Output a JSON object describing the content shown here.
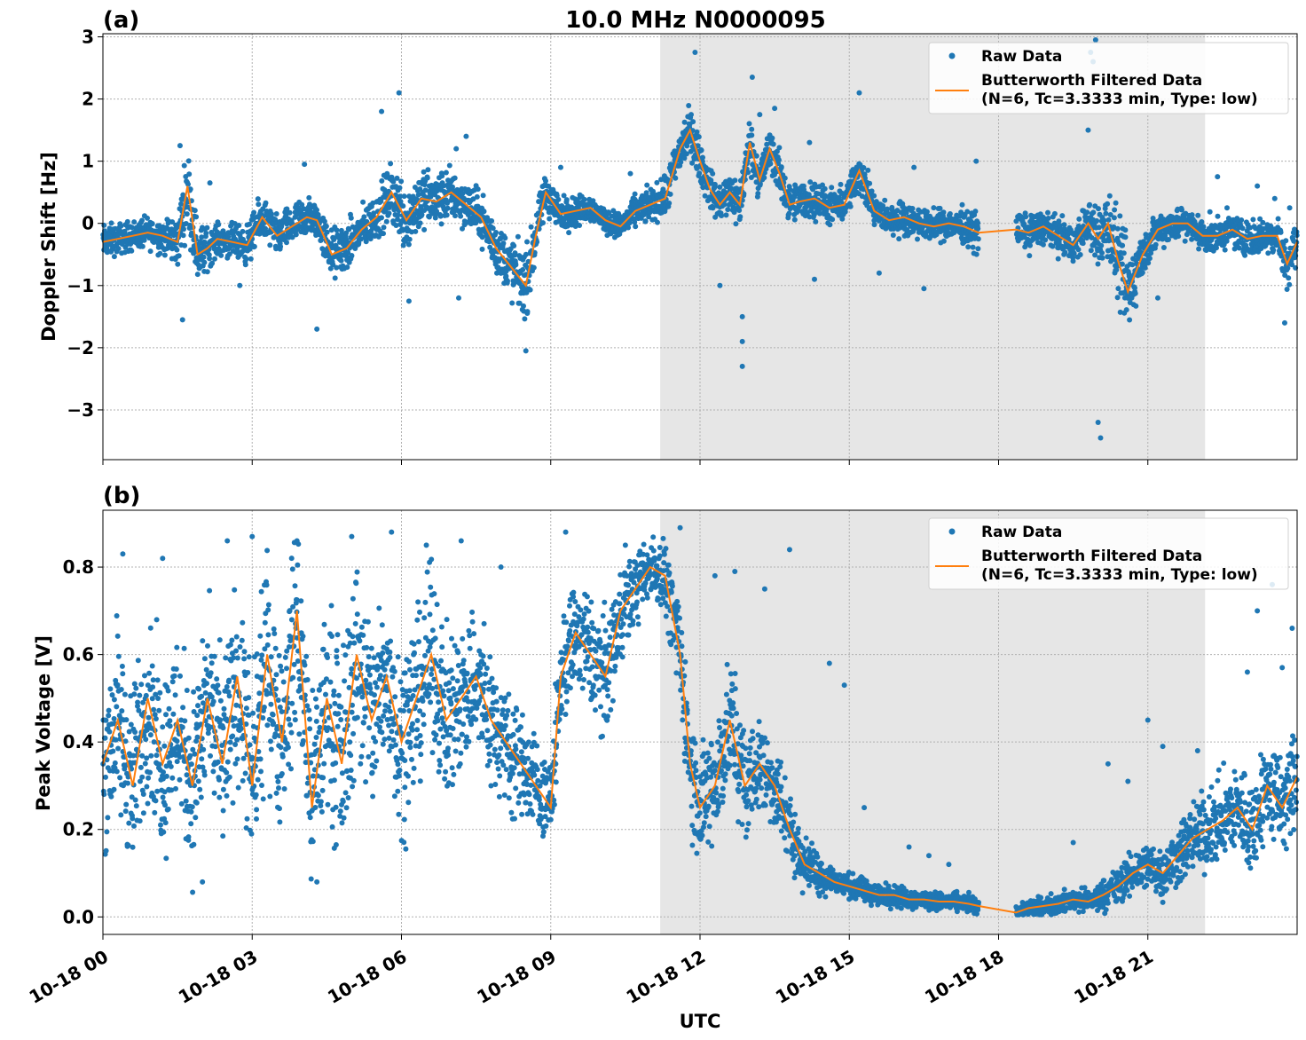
{
  "figure": {
    "title": "10.0 MHz N0000095",
    "xlabel": "UTC",
    "x_tick_labels": [
      "10-18 00",
      "10-18 03",
      "10-18 06",
      "10-18 09",
      "10-18 12",
      "10-18 15",
      "10-18 18",
      "10-18 21"
    ]
  },
  "legend": {
    "raw_label": "Raw Data",
    "filtered_label_line1": "Butterworth Filtered Data",
    "filtered_label_line2": "(N=6, Tc=3.3333 min, Type: low)"
  },
  "colors": {
    "raw": "#1f77b4",
    "filtered": "#ff7f0e",
    "night_shade": "#e6e6e6",
    "grid": "#b0b0b0"
  },
  "chart_data": [
    {
      "type": "scatter",
      "panel_label": "(a)",
      "ylabel": "Doppler Shift [Hz]",
      "x_unit": "hours UTC on 10-18",
      "xlim": [
        0,
        24
      ],
      "ylim": [
        -3.8,
        3.05
      ],
      "y_ticks": [
        -3,
        -2,
        -1,
        0,
        1,
        2,
        3
      ],
      "y_tick_labels": [
        "−3",
        "−2",
        "−1",
        "0",
        "1",
        "2",
        "3"
      ],
      "grid": true,
      "legend_position": "top-right",
      "shaded_region_hours": [
        11.2,
        22.15
      ],
      "data_gap_hours": [
        17.6,
        18.35
      ],
      "series": [
        {
          "name": "Butterworth Filtered Data",
          "role": "filtered",
          "x": [
            0,
            0.3,
            0.6,
            0.9,
            1.2,
            1.5,
            1.7,
            1.9,
            2.1,
            2.3,
            2.6,
            2.9,
            3.2,
            3.5,
            3.8,
            4.1,
            4.3,
            4.6,
            4.9,
            5.2,
            5.5,
            5.8,
            6.1,
            6.4,
            6.7,
            7.0,
            7.3,
            7.6,
            7.9,
            8.2,
            8.5,
            8.7,
            8.9,
            9.2,
            9.5,
            9.8,
            10.1,
            10.4,
            10.7,
            11.0,
            11.3,
            11.6,
            11.8,
            12.0,
            12.2,
            12.4,
            12.6,
            12.8,
            13.0,
            13.2,
            13.4,
            13.6,
            13.8,
            14.0,
            14.3,
            14.6,
            14.9,
            15.2,
            15.5,
            15.8,
            16.1,
            16.4,
            16.7,
            17.0,
            17.3,
            17.6,
            18.35,
            18.6,
            18.9,
            19.2,
            19.5,
            19.8,
            20.0,
            20.2,
            20.4,
            20.6,
            20.9,
            21.2,
            21.5,
            21.8,
            22.1,
            22.4,
            22.7,
            23.0,
            23.3,
            23.6,
            23.8,
            24.0
          ],
          "y": [
            -0.3,
            -0.25,
            -0.2,
            -0.15,
            -0.2,
            -0.3,
            0.6,
            -0.5,
            -0.4,
            -0.25,
            -0.3,
            -0.35,
            0.1,
            -0.2,
            -0.05,
            0.1,
            0.05,
            -0.5,
            -0.4,
            -0.1,
            0.1,
            0.5,
            0.05,
            0.4,
            0.35,
            0.5,
            0.3,
            0.1,
            -0.4,
            -0.7,
            -1.0,
            -0.2,
            0.5,
            0.15,
            0.2,
            0.25,
            0.05,
            -0.05,
            0.2,
            0.3,
            0.4,
            1.2,
            1.5,
            1.0,
            0.55,
            0.3,
            0.5,
            0.3,
            1.3,
            0.7,
            1.2,
            0.8,
            0.3,
            0.35,
            0.4,
            0.25,
            0.3,
            0.85,
            0.2,
            0.05,
            0.1,
            0.0,
            -0.05,
            0.0,
            -0.05,
            -0.15,
            -0.1,
            -0.15,
            -0.05,
            -0.2,
            -0.35,
            0.0,
            -0.25,
            0.0,
            -0.6,
            -1.1,
            -0.5,
            -0.1,
            0.0,
            0.0,
            -0.2,
            -0.2,
            -0.1,
            -0.25,
            -0.2,
            -0.2,
            -0.65,
            -0.3
          ]
        },
        {
          "name": "Raw Data",
          "role": "raw",
          "spread": [
            0.4,
            0.35,
            0.35,
            0.35,
            0.4,
            0.6,
            0.9,
            0.7,
            0.5,
            0.35,
            0.4,
            0.45,
            0.5,
            0.45,
            0.45,
            0.5,
            0.4,
            0.6,
            0.55,
            0.5,
            0.55,
            0.7,
            0.8,
            0.7,
            0.65,
            0.6,
            0.55,
            0.55,
            0.6,
            0.75,
            0.8,
            0.55,
            0.5,
            0.4,
            0.35,
            0.3,
            0.3,
            0.3,
            0.35,
            0.4,
            0.45,
            0.6,
            0.55,
            0.5,
            0.45,
            0.45,
            0.55,
            0.55,
            0.55,
            0.5,
            0.5,
            0.5,
            0.45,
            0.45,
            0.45,
            0.4,
            0.4,
            0.5,
            0.4,
            0.35,
            0.4,
            0.35,
            0.35,
            0.35,
            0.4,
            0.45,
            0.4,
            0.4,
            0.4,
            0.4,
            0.45,
            0.5,
            0.7,
            0.8,
            1.0,
            1.1,
            0.5,
            0.4,
            0.4,
            0.4,
            0.4,
            0.4,
            0.4,
            0.4,
            0.4,
            0.45,
            0.55,
            0.5
          ],
          "outliers": [
            [
              1.55,
              1.25
            ],
            [
              1.6,
              -1.55
            ],
            [
              2.15,
              0.65
            ],
            [
              2.75,
              -1.0
            ],
            [
              4.05,
              0.95
            ],
            [
              4.3,
              -1.7
            ],
            [
              5.6,
              1.8
            ],
            [
              5.95,
              2.1
            ],
            [
              6.15,
              -1.25
            ],
            [
              7.1,
              1.2
            ],
            [
              7.15,
              -1.2
            ],
            [
              7.3,
              1.4
            ],
            [
              8.5,
              -2.05
            ],
            [
              9.2,
              0.9
            ],
            [
              10.6,
              0.8
            ],
            [
              11.9,
              2.75
            ],
            [
              12.4,
              -1.0
            ],
            [
              12.85,
              -2.3
            ],
            [
              12.85,
              -1.9
            ],
            [
              12.85,
              -1.5
            ],
            [
              13.05,
              2.35
            ],
            [
              13.2,
              1.75
            ],
            [
              13.5,
              1.85
            ],
            [
              14.2,
              1.3
            ],
            [
              14.3,
              -0.9
            ],
            [
              15.2,
              2.1
            ],
            [
              15.6,
              -0.8
            ],
            [
              16.3,
              0.9
            ],
            [
              16.5,
              -1.05
            ],
            [
              17.55,
              1.0
            ],
            [
              19.8,
              1.5
            ],
            [
              19.85,
              2.75
            ],
            [
              19.9,
              2.6
            ],
            [
              19.95,
              2.95
            ],
            [
              20.0,
              -3.2
            ],
            [
              20.05,
              -3.45
            ],
            [
              21.2,
              -1.2
            ],
            [
              22.4,
              0.75
            ],
            [
              23.2,
              0.6
            ],
            [
              23.55,
              0.4
            ],
            [
              23.75,
              -1.6
            ],
            [
              23.85,
              0.25
            ]
          ]
        }
      ]
    },
    {
      "type": "scatter",
      "panel_label": "(b)",
      "ylabel": "Peak Voltage [V]",
      "x_unit": "hours UTC on 10-18",
      "xlim": [
        0,
        24
      ],
      "ylim": [
        -0.04,
        0.93
      ],
      "y_ticks": [
        0.0,
        0.2,
        0.4,
        0.6,
        0.8
      ],
      "y_tick_labels": [
        "0.0",
        "0.2",
        "0.4",
        "0.6",
        "0.8"
      ],
      "grid": true,
      "legend_position": "top-right",
      "shaded_region_hours": [
        11.2,
        22.15
      ],
      "data_gap_hours": [
        17.6,
        18.35
      ],
      "series": [
        {
          "name": "Butterworth Filtered Data",
          "role": "filtered",
          "x": [
            0,
            0.3,
            0.6,
            0.9,
            1.2,
            1.5,
            1.8,
            2.1,
            2.4,
            2.7,
            3.0,
            3.3,
            3.6,
            3.9,
            4.2,
            4.5,
            4.8,
            5.1,
            5.4,
            5.7,
            6.0,
            6.3,
            6.6,
            6.9,
            7.2,
            7.5,
            7.8,
            8.1,
            8.4,
            8.7,
            9.0,
            9.2,
            9.5,
            9.8,
            10.1,
            10.4,
            10.7,
            11.0,
            11.3,
            11.6,
            11.8,
            12.0,
            12.3,
            12.6,
            12.9,
            13.2,
            13.5,
            13.8,
            14.1,
            14.4,
            14.7,
            15.0,
            15.3,
            15.6,
            15.9,
            16.2,
            16.5,
            16.8,
            17.1,
            17.4,
            17.6,
            18.35,
            18.6,
            18.9,
            19.2,
            19.5,
            19.8,
            20.1,
            20.4,
            20.7,
            21.0,
            21.3,
            21.6,
            21.9,
            22.2,
            22.5,
            22.8,
            23.1,
            23.4,
            23.7,
            24.0
          ],
          "y": [
            0.35,
            0.45,
            0.3,
            0.5,
            0.35,
            0.45,
            0.3,
            0.5,
            0.35,
            0.55,
            0.3,
            0.6,
            0.4,
            0.7,
            0.25,
            0.5,
            0.35,
            0.6,
            0.45,
            0.55,
            0.4,
            0.5,
            0.6,
            0.45,
            0.5,
            0.55,
            0.45,
            0.4,
            0.35,
            0.3,
            0.25,
            0.55,
            0.65,
            0.6,
            0.55,
            0.7,
            0.75,
            0.8,
            0.78,
            0.6,
            0.35,
            0.25,
            0.3,
            0.45,
            0.3,
            0.35,
            0.3,
            0.2,
            0.12,
            0.1,
            0.08,
            0.07,
            0.06,
            0.05,
            0.05,
            0.04,
            0.04,
            0.035,
            0.035,
            0.03,
            0.025,
            0.01,
            0.02,
            0.025,
            0.03,
            0.04,
            0.035,
            0.05,
            0.07,
            0.1,
            0.12,
            0.1,
            0.14,
            0.18,
            0.2,
            0.22,
            0.25,
            0.2,
            0.3,
            0.25,
            0.32
          ]
        },
        {
          "name": "Raw Data",
          "role": "raw",
          "spread": [
            0.3,
            0.3,
            0.3,
            0.3,
            0.3,
            0.3,
            0.3,
            0.3,
            0.3,
            0.32,
            0.32,
            0.32,
            0.32,
            0.32,
            0.32,
            0.34,
            0.34,
            0.34,
            0.32,
            0.3,
            0.3,
            0.28,
            0.28,
            0.26,
            0.25,
            0.25,
            0.22,
            0.2,
            0.18,
            0.15,
            0.14,
            0.18,
            0.18,
            0.2,
            0.2,
            0.15,
            0.12,
            0.1,
            0.12,
            0.15,
            0.2,
            0.2,
            0.2,
            0.2,
            0.18,
            0.15,
            0.14,
            0.12,
            0.08,
            0.07,
            0.05,
            0.04,
            0.04,
            0.04,
            0.035,
            0.035,
            0.03,
            0.03,
            0.03,
            0.03,
            0.03,
            0.03,
            0.03,
            0.03,
            0.035,
            0.035,
            0.04,
            0.05,
            0.06,
            0.07,
            0.08,
            0.09,
            0.1,
            0.12,
            0.13,
            0.14,
            0.15,
            0.16,
            0.16,
            0.17,
            0.16
          ],
          "outliers": [
            [
              0.4,
              0.83
            ],
            [
              1.2,
              0.82
            ],
            [
              2.0,
              0.08
            ],
            [
              2.5,
              0.86
            ],
            [
              3.0,
              0.87
            ],
            [
              3.9,
              0.86
            ],
            [
              4.3,
              0.08
            ],
            [
              5.0,
              0.87
            ],
            [
              5.8,
              0.88
            ],
            [
              6.5,
              0.85
            ],
            [
              7.2,
              0.86
            ],
            [
              8.0,
              0.8
            ],
            [
              9.3,
              0.88
            ],
            [
              10.5,
              0.85
            ],
            [
              11.6,
              0.89
            ],
            [
              12.3,
              0.78
            ],
            [
              12.7,
              0.79
            ],
            [
              13.3,
              0.75
            ],
            [
              13.8,
              0.84
            ],
            [
              14.6,
              0.58
            ],
            [
              14.9,
              0.53
            ],
            [
              15.3,
              0.25
            ],
            [
              16.2,
              0.16
            ],
            [
              16.6,
              0.14
            ],
            [
              17.0,
              0.12
            ],
            [
              19.5,
              0.17
            ],
            [
              20.2,
              0.35
            ],
            [
              20.6,
              0.31
            ],
            [
              21.0,
              0.45
            ],
            [
              21.3,
              0.39
            ],
            [
              22.0,
              0.38
            ],
            [
              22.5,
              0.25
            ],
            [
              23.0,
              0.56
            ],
            [
              23.2,
              0.7
            ],
            [
              23.5,
              0.76
            ],
            [
              23.7,
              0.57
            ],
            [
              23.9,
              0.66
            ]
          ]
        }
      ]
    }
  ]
}
